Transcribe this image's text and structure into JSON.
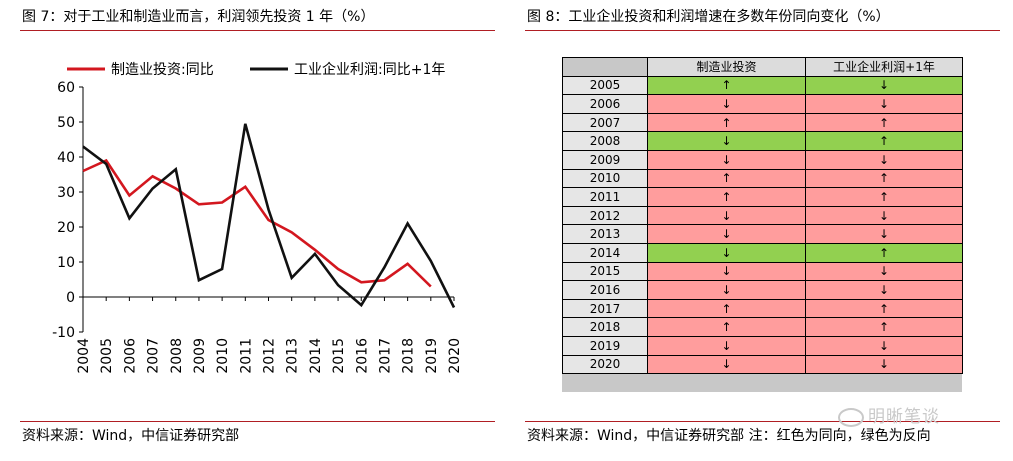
{
  "left_panel": {
    "title": "图 7：对于工业和制造业而言，利润领先投资 1 年（%）",
    "source": "资料来源：Wind，中信证券研究部"
  },
  "right_panel": {
    "title": "图 8：工业企业投资和利润增速在多数年份同向变化（%）",
    "source": "资料来源：Wind，中信证券研究部  注：红色为同向，绿色为反向"
  },
  "watermark": "明晰笔谈",
  "colors": {
    "red_line": "#d3171f",
    "black_line": "#111111",
    "rule": "#b01e23",
    "same_dir": "#ff9d9d",
    "opposite_dir": "#92d050"
  },
  "chart_data": [
    {
      "type": "line",
      "title": "",
      "x": [
        "2004",
        "2005",
        "2006",
        "2007",
        "2008",
        "2009",
        "2010",
        "2011",
        "2012",
        "2013",
        "2014",
        "2015",
        "2016",
        "2017",
        "2018",
        "2019",
        "2020"
      ],
      "ylim": [
        -10,
        60
      ],
      "yticks": [
        -10,
        0,
        10,
        20,
        30,
        40,
        50,
        60
      ],
      "grid": false,
      "legend": "top",
      "series": [
        {
          "name": "制造业投资:同比",
          "color": "#d3171f",
          "values": [
            36,
            39,
            29,
            34.5,
            31,
            26.5,
            27,
            31.5,
            22,
            18.5,
            13.5,
            8,
            4.2,
            4.8,
            9.5,
            3,
            null
          ]
        },
        {
          "name": "工业企业利润:同比+1年",
          "color": "#111111",
          "values": [
            43,
            38,
            22.5,
            31,
            36.5,
            4.8,
            8,
            49.5,
            25,
            5.5,
            12.3,
            3.4,
            -2.3,
            8.5,
            21,
            10.3,
            -3
          ]
        }
      ]
    },
    {
      "type": "table",
      "columns": [
        "",
        "制造业投资",
        "工业企业利润+1年"
      ],
      "rows": [
        {
          "year": "2005",
          "inv": "↑",
          "profit": "↓",
          "color": "green"
        },
        {
          "year": "2006",
          "inv": "↓",
          "profit": "↓",
          "color": "red"
        },
        {
          "year": "2007",
          "inv": "↑",
          "profit": "↑",
          "color": "red"
        },
        {
          "year": "2008",
          "inv": "↓",
          "profit": "↑",
          "color": "green"
        },
        {
          "year": "2009",
          "inv": "↓",
          "profit": "↓",
          "color": "red"
        },
        {
          "year": "2010",
          "inv": "↑",
          "profit": "↑",
          "color": "red"
        },
        {
          "year": "2011",
          "inv": "↑",
          "profit": "↑",
          "color": "red"
        },
        {
          "year": "2012",
          "inv": "↓",
          "profit": "↓",
          "color": "red"
        },
        {
          "year": "2013",
          "inv": "↓",
          "profit": "↓",
          "color": "red"
        },
        {
          "year": "2014",
          "inv": "↓",
          "profit": "↑",
          "color": "green"
        },
        {
          "year": "2015",
          "inv": "↓",
          "profit": "↓",
          "color": "red"
        },
        {
          "year": "2016",
          "inv": "↓",
          "profit": "↓",
          "color": "red"
        },
        {
          "year": "2017",
          "inv": "↑",
          "profit": "↑",
          "color": "red"
        },
        {
          "year": "2018",
          "inv": "↑",
          "profit": "↑",
          "color": "red"
        },
        {
          "year": "2019",
          "inv": "↓",
          "profit": "↓",
          "color": "red"
        },
        {
          "year": "2020",
          "inv": "↓",
          "profit": "↓",
          "color": "red"
        }
      ]
    }
  ]
}
